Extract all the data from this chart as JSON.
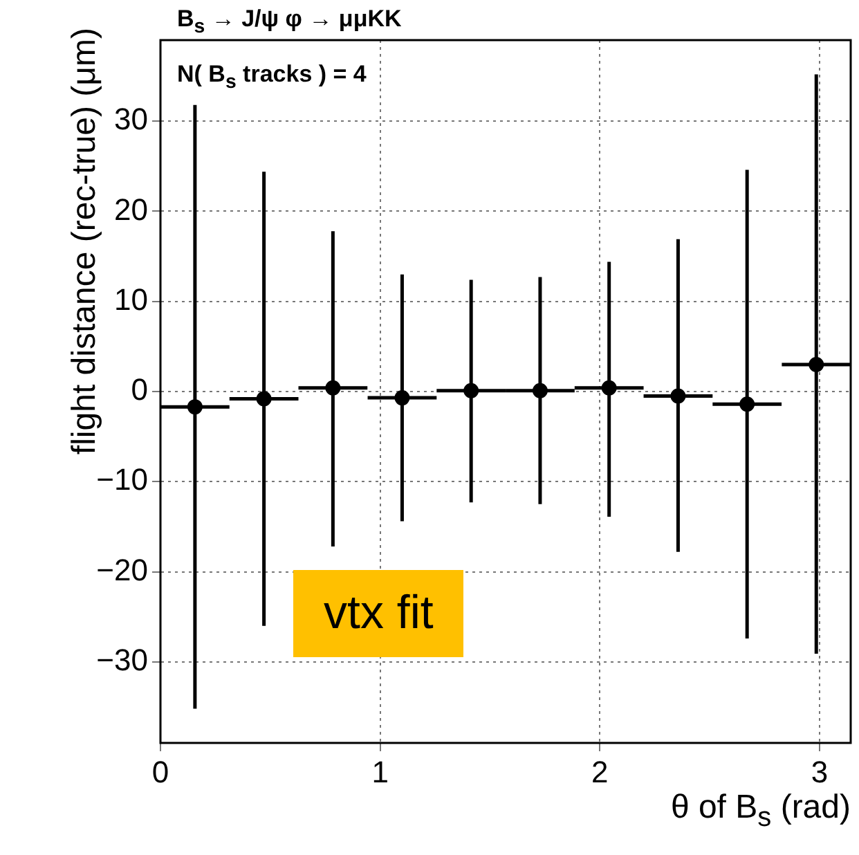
{
  "chart_data": {
    "type": "scatter",
    "title": "B$_{s}$ → J/ψ  φ → μμKK",
    "xlabel": "θ of B$_{s}$ (rad)",
    "ylabel": "flight distance (rec-true) (μm)",
    "annotations": [
      "N( B$_{s}$ tracks ) = 4",
      "vtx fit"
    ],
    "x": [
      0.157,
      0.471,
      0.785,
      1.1,
      1.414,
      1.728,
      2.042,
      2.356,
      2.67,
      2.985
    ],
    "values": [
      -1.7,
      -0.8,
      0.4,
      -0.7,
      0.1,
      0.1,
      0.4,
      -0.5,
      -1.4,
      3.0
    ],
    "errors": [
      [
        -35.2,
        31.8
      ],
      [
        -26,
        24.4
      ],
      [
        -17.2,
        17.8
      ],
      [
        -14.4,
        13.0
      ],
      [
        -12.3,
        12.4
      ],
      [
        -12.5,
        12.7
      ],
      [
        -13.9,
        14.4
      ],
      [
        -17.8,
        16.9
      ],
      [
        -27.4,
        24.6
      ],
      [
        -29.1,
        35.2
      ]
    ],
    "xerrors": [
      0.157,
      0.157,
      0.157,
      0.157,
      0.157,
      0.157,
      0.157,
      0.157,
      0.157,
      0.157
    ],
    "color": "#000000",
    "marker": "circle",
    "xlim": [
      0,
      3.1416
    ],
    "xticks": [
      0,
      1,
      2,
      3
    ],
    "ylim": [
      -39,
      39
    ],
    "yticks": [
      -30,
      -20,
      -10,
      0,
      10,
      20,
      30
    ],
    "grid": true
  }
}
